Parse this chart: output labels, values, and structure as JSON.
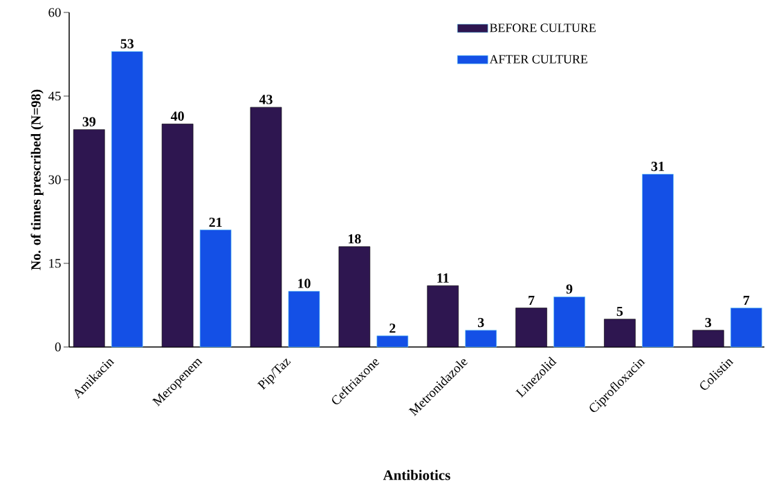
{
  "chart_data": {
    "type": "bar",
    "xlabel": "Antibiotics",
    "ylabel": "No. of times prescribed (N=98)",
    "categories": [
      "Amikacin",
      "Meropenem",
      "Pip/Taz",
      "Ceftriaxone",
      "Metronidazole",
      "Linezolid",
      "Ciprofloxacin",
      "Colistin"
    ],
    "series": [
      {
        "name": "BEFORE CULTURE",
        "color": "#2e1650",
        "values": [
          39,
          40,
          43,
          18,
          11,
          7,
          5,
          3
        ]
      },
      {
        "name": "AFTER CULTURE",
        "color": "#1450e6",
        "values": [
          53,
          21,
          10,
          2,
          3,
          9,
          31,
          7
        ]
      }
    ],
    "ylim": [
      0,
      60
    ],
    "yticks": [
      0,
      15,
      30,
      45,
      60
    ],
    "data_labels": true,
    "legend": "top right",
    "grid": false
  }
}
